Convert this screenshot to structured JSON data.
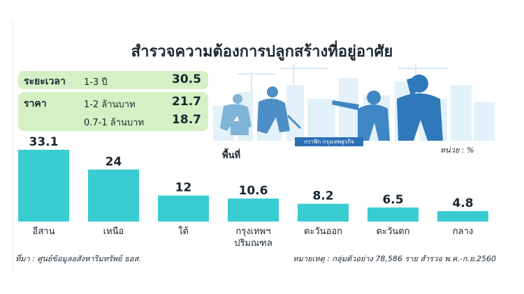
{
  "title": "สำรวจความต้องการปลูกสร้างที่อยู่อาศัย",
  "info": {
    "period": {
      "key": "ระยะเวลา",
      "range": "1-3 ปี",
      "value": "30.5"
    },
    "price": {
      "key": "ราคา",
      "rows": [
        {
          "range": "1-2 ล้านบาท",
          "value": "21.7"
        },
        {
          "range": "0.7-1 ล้านบาท",
          "value": "18.7"
        }
      ]
    }
  },
  "credit": "กราฟิก กรุงเทพธุรกิจ",
  "area_label": "พื้นที่",
  "unit_label": "หน่วย : %",
  "chart_data": {
    "type": "bar",
    "categories": [
      "อีสาน",
      "เหนือ",
      "ใต้",
      "กรุงเทพฯ ปริมณฑล",
      "ตะวันออก",
      "ตะวันตก",
      "กลาง"
    ],
    "category_lines": [
      [
        "อีสาน"
      ],
      [
        "เหนือ"
      ],
      [
        "ใต้"
      ],
      [
        "กรุงเทพฯ",
        "ปริมณฑล"
      ],
      [
        "ตะวันออก"
      ],
      [
        "ตะวันตก"
      ],
      [
        "กลาง"
      ]
    ],
    "values": [
      33.1,
      24,
      12,
      10.6,
      8.2,
      6.5,
      4.8
    ],
    "value_labels": [
      "33.1",
      "24",
      "12",
      "10.6",
      "8.2",
      "6.5",
      "4.8"
    ],
    "bar_color": "#39cdd1",
    "ylim": [
      0,
      33.1
    ]
  },
  "footnotes": {
    "source": "ที่มา : ศูนย์ข้อมูลอสังหาริมทรัพย์ ธอส.",
    "note": "หมายเหตุ : กลุ่มตัวอย่าง 78,586 ราย สำรวจ พ.ค.-ก.ย.2560"
  }
}
